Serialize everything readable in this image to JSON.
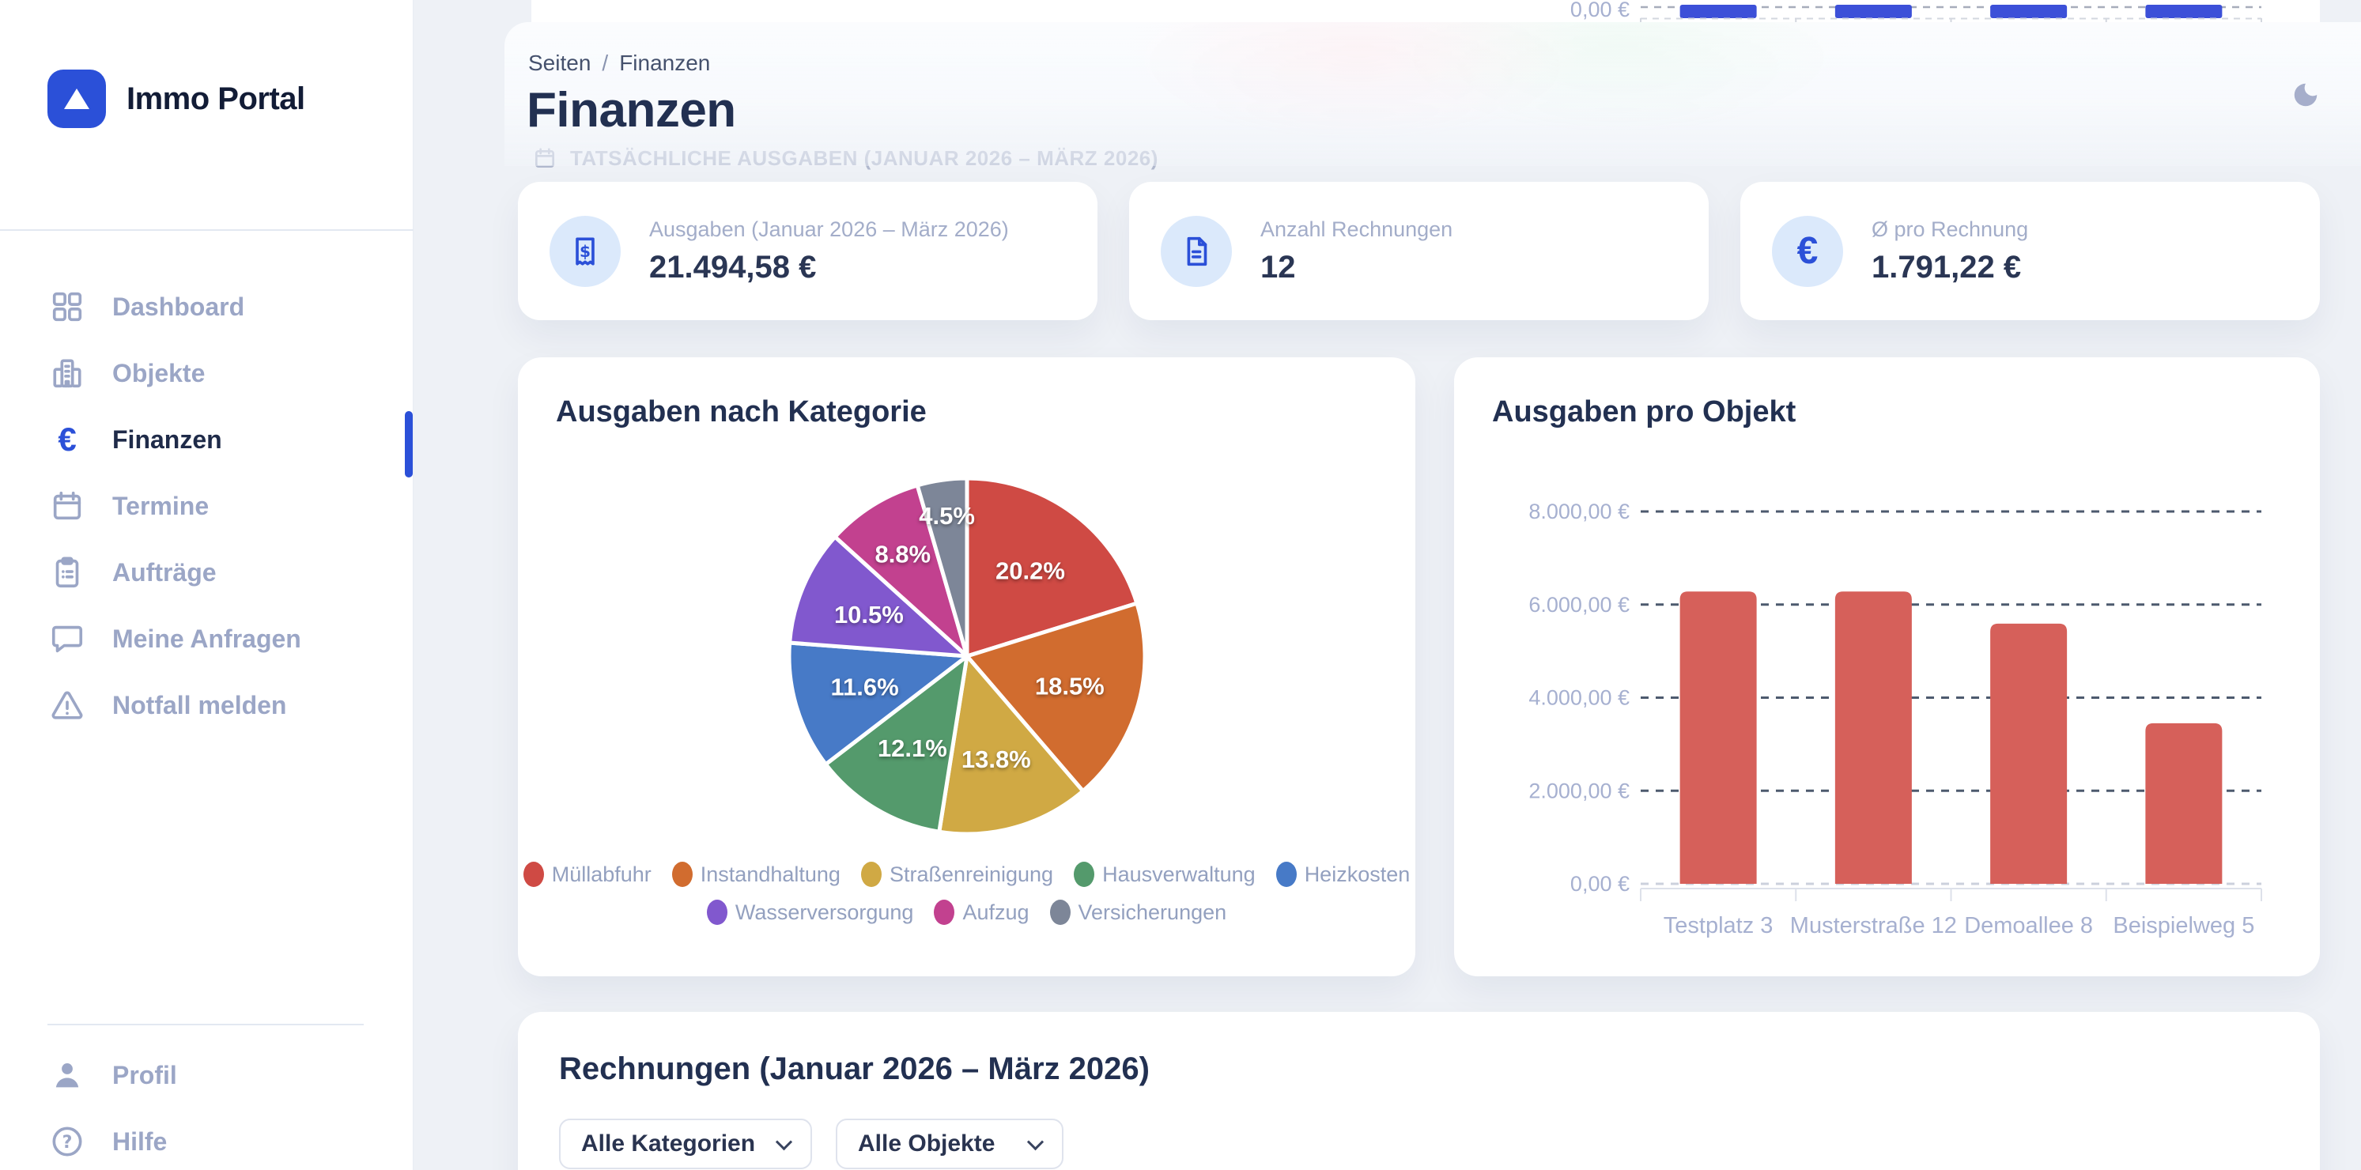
{
  "brand": {
    "name": "Immo Portal"
  },
  "sidebar": {
    "items": [
      {
        "label": "Dashboard",
        "icon": "dashboard-grid-icon",
        "active": false
      },
      {
        "label": "Objekte",
        "icon": "building-icon",
        "active": false
      },
      {
        "label": "Finanzen",
        "icon": "euro-icon",
        "active": true
      },
      {
        "label": "Termine",
        "icon": "calendar-icon",
        "active": false
      },
      {
        "label": "Aufträge",
        "icon": "clipboard-icon",
        "active": false
      },
      {
        "label": "Meine Anfragen",
        "icon": "chat-icon",
        "active": false
      },
      {
        "label": "Notfall melden",
        "icon": "warning-icon",
        "active": false
      }
    ],
    "footer_items": [
      {
        "label": "Profil",
        "icon": "person-icon"
      },
      {
        "label": "Hilfe",
        "icon": "help-icon"
      }
    ]
  },
  "header": {
    "breadcrumb": {
      "root": "Seiten",
      "separator": "/",
      "current": "Finanzen"
    },
    "title": "Finanzen",
    "theme_toggle_icon": "moon-icon"
  },
  "obscured_section_label": "TATSÄCHLICHE AUSGABEN (JANUAR 2026 – MÄRZ 2026)",
  "stats": [
    {
      "icon": "invoice-icon",
      "label": "Ausgaben (Januar 2026 – März 2026)",
      "value": "21.494,58 €"
    },
    {
      "icon": "document-icon",
      "label": "Anzahl Rechnungen",
      "value": "12"
    },
    {
      "icon": "euro-circle-icon",
      "label": "Ø pro Rechnung",
      "value": "1.791,22 €"
    }
  ],
  "invoices": {
    "title": "Rechnungen (Januar 2026 – März 2026)",
    "filters": [
      {
        "value": "Alle Kategorien"
      },
      {
        "value": "Alle Objekte"
      }
    ]
  },
  "colors": {
    "accent_blue": "#2b50d8",
    "bar_red": "#d6605a",
    "partial_bar_blue": "#3c50d8",
    "axis_label": "#a6b0d0",
    "grid_dash_dark": "#4d5a6e",
    "grid_dash_light": "#ccd1dc",
    "background": "#eef1f6"
  },
  "chart_data": [
    {
      "id": "expenses-by-category",
      "type": "pie",
      "title": "Ausgaben nach Kategorie",
      "labels": [
        "Müllabfuhr",
        "Instandhaltung",
        "Straßenreinigung",
        "Hausverwaltung",
        "Heizkosten",
        "Wasserversorgung",
        "Aufzug",
        "Versicherungen"
      ],
      "values_percent": [
        20.2,
        18.5,
        13.8,
        12.1,
        11.6,
        10.5,
        8.8,
        4.5
      ],
      "colors": [
        "#cf4a44",
        "#d16c2f",
        "#d0a944",
        "#549a6c",
        "#477ac7",
        "#8158ce",
        "#c2418f",
        "#7d8698"
      ],
      "slice_label_format": "percent-one-decimal",
      "start_angle_deg": -90,
      "direction": "clockwise",
      "legend_position": "bottom",
      "legend_rows": [
        5,
        3
      ]
    },
    {
      "id": "expenses-per-property",
      "type": "bar",
      "title": "Ausgaben pro Objekt",
      "categories": [
        "Testplatz 3",
        "Musterstraße 12",
        "Demoallee 8",
        "Beispielweg 5"
      ],
      "values": [
        6280,
        6280,
        5590,
        3450
      ],
      "ylim": [
        0,
        8000
      ],
      "yticks": [
        0,
        2000,
        4000,
        6000,
        8000
      ],
      "ytick_labels": [
        "0,00 €",
        "2.000,00 €",
        "4.000,00 €",
        "6.000,00 €",
        "8.000,00 €"
      ],
      "bar_color": "#d6605a",
      "grid": "dashed-horizontal",
      "legend_position": "none"
    },
    {
      "id": "scrolled-out-chart-remnant",
      "type": "bar",
      "partial": true,
      "note": "only bottom sliver visible at top edge of viewport",
      "visible_ytick_label": "0,00 €",
      "bar_color": "#3c50d8",
      "bars_visible": 4
    }
  ]
}
